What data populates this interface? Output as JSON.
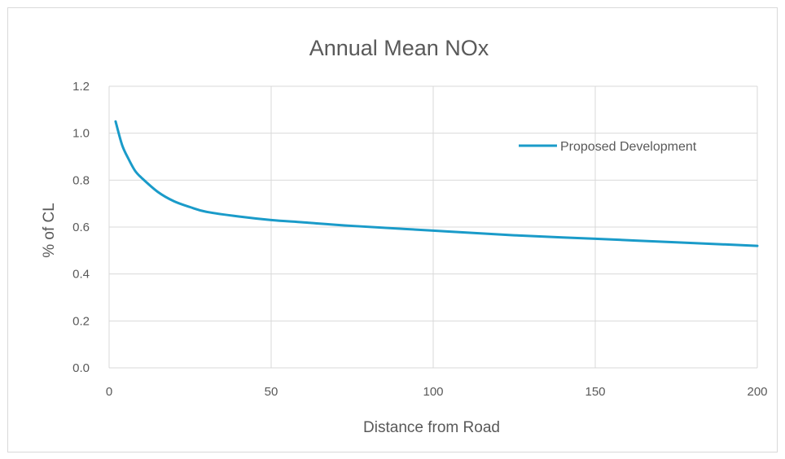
{
  "chart_data": {
    "type": "line",
    "title": "Annual Mean NOx",
    "xlabel": "Distance from Road",
    "ylabel": "% of CL",
    "xlim": [
      0,
      200
    ],
    "ylim": [
      0,
      1.2
    ],
    "x_ticks": [
      "0",
      "50",
      "100",
      "150",
      "200"
    ],
    "y_ticks": [
      "0.0",
      "0.2",
      "0.4",
      "0.6",
      "0.8",
      "1.0",
      "1.2"
    ],
    "grid": true,
    "legend_position": "top-right",
    "series": [
      {
        "name": "Proposed Development",
        "color": "#1a9bc9",
        "x": [
          2,
          4,
          6,
          8,
          10,
          15,
          20,
          25,
          30,
          40,
          50,
          60,
          75,
          100,
          125,
          150,
          175,
          200
        ],
        "y": [
          1.05,
          0.95,
          0.89,
          0.84,
          0.81,
          0.75,
          0.71,
          0.685,
          0.665,
          0.645,
          0.63,
          0.62,
          0.605,
          0.585,
          0.565,
          0.55,
          0.535,
          0.52
        ]
      }
    ]
  }
}
